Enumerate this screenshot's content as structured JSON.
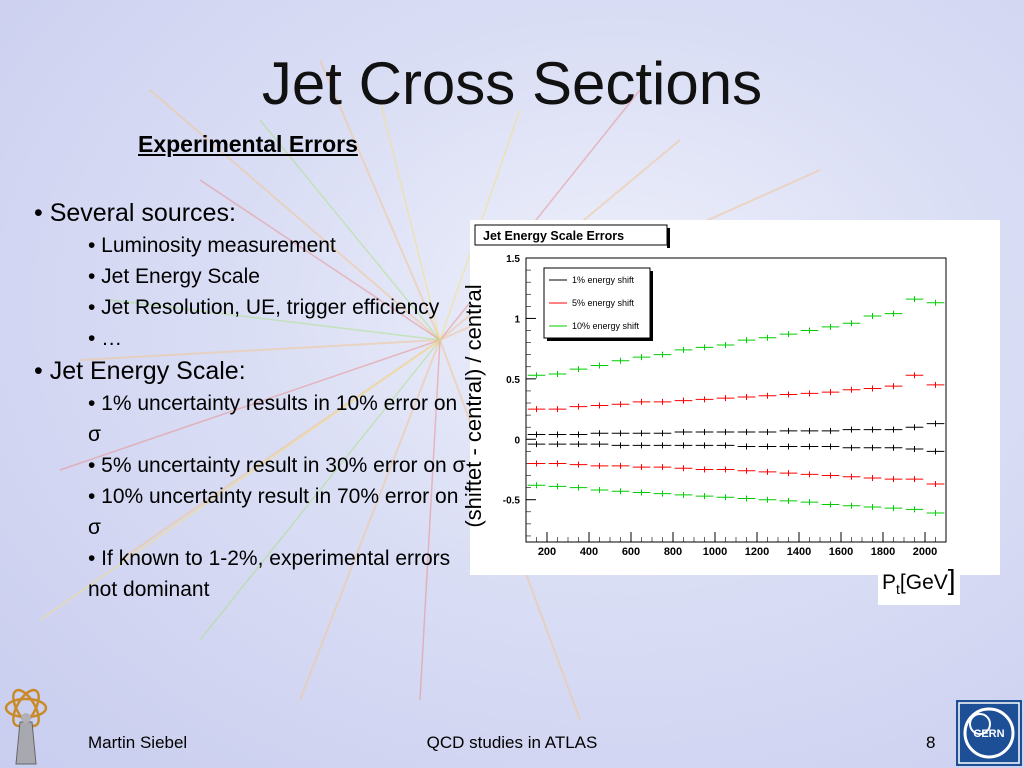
{
  "slide": {
    "title": "Jet Cross Sections",
    "subtitle": "Experimental Errors",
    "bullets": [
      {
        "level": 1,
        "text": "• Several sources:"
      },
      {
        "level": 2,
        "text": "• Luminosity measurement"
      },
      {
        "level": 2,
        "text": "• Jet Energy Scale"
      },
      {
        "level": 2,
        "text": "• Jet Resolution, UE, trigger efficiency"
      },
      {
        "level": 2,
        "text": "• …"
      },
      {
        "level": 1,
        "text": "• Jet Energy Scale:"
      },
      {
        "level": 2,
        "text": "• 1% uncertainty results in 10% error on σ"
      },
      {
        "level": 2,
        "text": "• 5% uncertainty result  in 30%   error on σ"
      },
      {
        "level": 2,
        "text": "• 10% uncertainty result  in 70% error on σ"
      },
      {
        "level": 2,
        "text": "• If known to 1-2%, experimental errors not dominant"
      }
    ],
    "ylabel": "(shiftet - central) / central",
    "xunit_main": "P",
    "xunit_sub": "t",
    "xunit_rest": "[GeV",
    "xunit_bracket": "]"
  },
  "footer": {
    "author": "Martin Siebel",
    "center": "QCD studies in ATLAS",
    "page": "8"
  },
  "logos": {
    "left": "atlas-logo",
    "right_text": "CERN"
  },
  "chart_data": {
    "type": "line",
    "title": "Jet Energy Scale Errors",
    "xlim": [
      100,
      2100
    ],
    "ylim": [
      -0.85,
      1.5
    ],
    "x_ticks": [
      200,
      400,
      600,
      800,
      1000,
      1200,
      1400,
      1600,
      1800,
      2000
    ],
    "y_ticks": [
      -0.5,
      0,
      0.5,
      1,
      1.5
    ],
    "x": [
      150,
      250,
      350,
      450,
      550,
      650,
      750,
      850,
      950,
      1050,
      1150,
      1250,
      1350,
      1450,
      1550,
      1650,
      1750,
      1850,
      1950,
      2050
    ],
    "legend_position": "top-left",
    "series": [
      {
        "name": "1% energy shift",
        "color": "#000000",
        "values": [
          0.04,
          0.04,
          0.04,
          0.05,
          0.05,
          0.05,
          0.05,
          0.06,
          0.06,
          0.06,
          0.06,
          0.06,
          0.07,
          0.07,
          0.07,
          0.08,
          0.08,
          0.08,
          0.1,
          0.13
        ]
      },
      {
        "name": "1% energy shift",
        "color": "#000000",
        "values": [
          -0.04,
          -0.04,
          -0.04,
          -0.04,
          -0.05,
          -0.05,
          -0.05,
          -0.05,
          -0.05,
          -0.05,
          -0.06,
          -0.06,
          -0.06,
          -0.06,
          -0.06,
          -0.07,
          -0.07,
          -0.07,
          -0.08,
          -0.1
        ]
      },
      {
        "name": "5% energy shift",
        "color": "#ff0000",
        "values": [
          0.25,
          0.25,
          0.27,
          0.28,
          0.29,
          0.31,
          0.31,
          0.32,
          0.33,
          0.34,
          0.35,
          0.36,
          0.37,
          0.38,
          0.39,
          0.41,
          0.42,
          0.44,
          0.53,
          0.45
        ]
      },
      {
        "name": "5% energy shift",
        "color": "#ff0000",
        "values": [
          -0.2,
          -0.2,
          -0.21,
          -0.22,
          -0.22,
          -0.23,
          -0.23,
          -0.24,
          -0.25,
          -0.25,
          -0.26,
          -0.27,
          -0.28,
          -0.29,
          -0.3,
          -0.31,
          -0.32,
          -0.33,
          -0.33,
          -0.37
        ]
      },
      {
        "name": "10% energy shift",
        "color": "#00cc00",
        "values": [
          0.53,
          0.54,
          0.58,
          0.61,
          0.65,
          0.68,
          0.7,
          0.74,
          0.76,
          0.78,
          0.82,
          0.84,
          0.87,
          0.9,
          0.93,
          0.96,
          1.02,
          1.04,
          1.16,
          1.13
        ]
      },
      {
        "name": "10% energy shift",
        "color": "#00cc00",
        "values": [
          -0.38,
          -0.39,
          -0.4,
          -0.42,
          -0.43,
          -0.44,
          -0.45,
          -0.46,
          -0.47,
          -0.48,
          -0.49,
          -0.5,
          -0.51,
          -0.52,
          -0.54,
          -0.55,
          -0.56,
          -0.57,
          -0.58,
          -0.61
        ]
      }
    ]
  }
}
